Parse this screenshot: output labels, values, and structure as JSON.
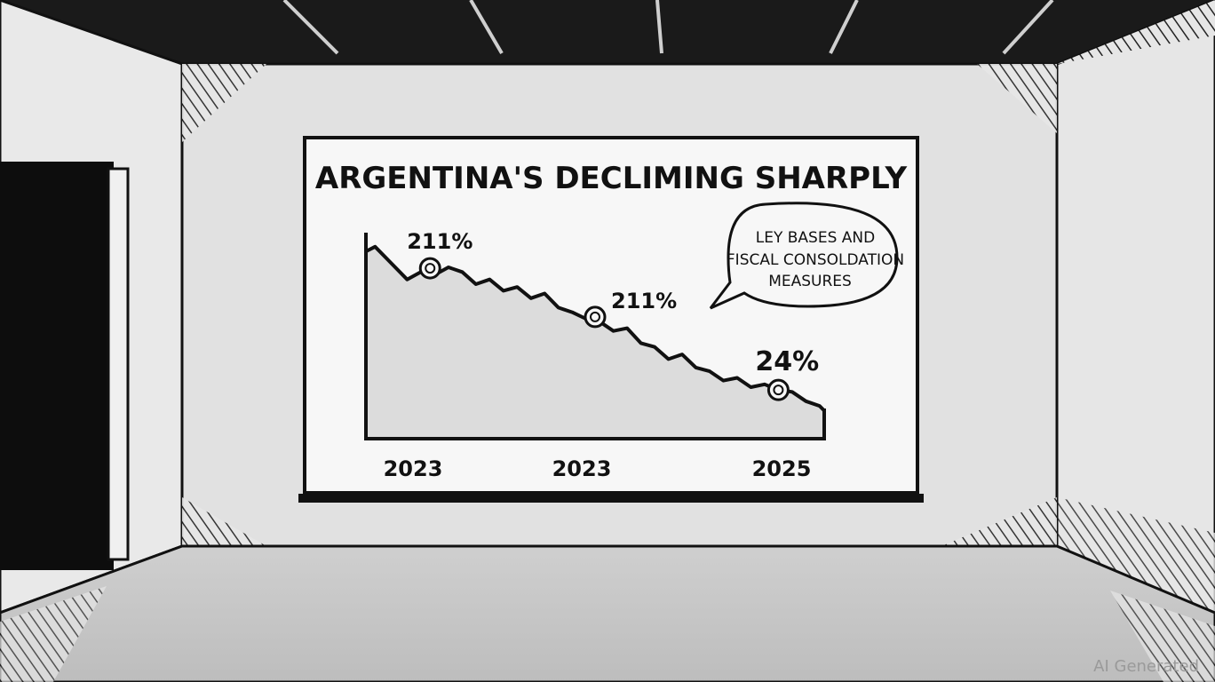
{
  "chart_data": {
    "type": "line",
    "title": "ARGENTINA'S DECLIMING SHARPLY",
    "x_tick_labels": [
      "2023",
      "2023",
      "2025"
    ],
    "series": [
      {
        "x": [
          0,
          2,
          5,
          9,
          12,
          15,
          18,
          21,
          24,
          27,
          30,
          33,
          36,
          39,
          42,
          45,
          48,
          51,
          54,
          57,
          60,
          63,
          66,
          69,
          72,
          75,
          78,
          81,
          84,
          87,
          90,
          93,
          96,
          99,
          100
        ],
        "values": [
          200,
          205,
          190,
          170,
          178,
          175,
          183,
          178,
          165,
          170,
          158,
          162,
          150,
          155,
          140,
          135,
          128,
          125,
          115,
          118,
          102,
          98,
          85,
          90,
          76,
          72,
          62,
          65,
          55,
          58,
          52,
          50,
          40,
          35,
          30
        ]
      }
    ],
    "annotations": [
      {
        "label": "211%",
        "x": 14,
        "y": 182
      },
      {
        "label": "211%",
        "x": 50,
        "y": 130
      },
      {
        "label": "24%",
        "x": 90,
        "y": 52
      }
    ],
    "callout": {
      "lines": [
        "LEY BASES AND",
        "FISCAL CONSOLDATION",
        "MEASURES"
      ]
    },
    "xlim": [
      0,
      100
    ],
    "ylim": [
      0,
      220
    ]
  },
  "watermark": "AI Generated"
}
